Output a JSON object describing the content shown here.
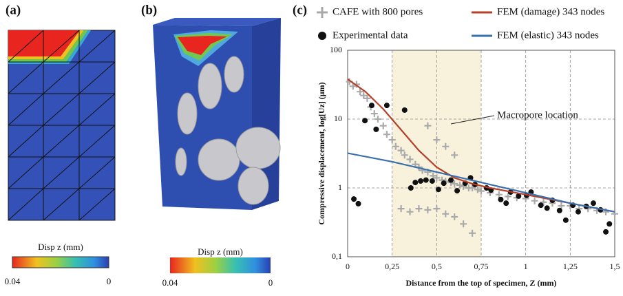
{
  "panels": [
    {
      "label": "(a)",
      "colorbar_title": "Disp z (mm)",
      "colorbar_ticks": [
        0.04,
        0
      ]
    },
    {
      "label": "(b)",
      "colorbar_title": "Disp z (mm)",
      "colorbar_ticks": [
        0.04,
        0
      ]
    }
  ],
  "chart_data": {
    "type": "scatter",
    "panel_label": "(c)",
    "xlabel": "Distance from the top of specimen, Z (mm)",
    "ylabel": "Compressive displacement, log[Uz] (μm)",
    "xlim": [
      0,
      1.5
    ],
    "ylim": [
      0.1,
      100
    ],
    "yscale": "log",
    "grid": true,
    "xticks": [
      0,
      {
        "value": 0.25,
        "label": "0,25"
      },
      {
        "value": 0.5,
        "label": "0,5"
      },
      {
        "value": 0.75,
        "label": "0,75"
      },
      1,
      {
        "value": 1.25,
        "label": "1,25"
      },
      {
        "value": 1.5,
        "label": "1,5"
      }
    ],
    "yticks": [
      {
        "value": 0.1,
        "label": "0,1"
      },
      1,
      10,
      100
    ],
    "highlight": {
      "x": [
        0.25,
        0.75
      ],
      "color": "#f8f1dc",
      "label": "Macropore location"
    },
    "series": [
      {
        "name": "CAFE with 800 pores",
        "color": "#a9a9a9",
        "marker": "plus",
        "x": [
          0.01,
          0.03,
          0.05,
          0.07,
          0.09,
          0.11,
          0.13,
          0.15,
          0.17,
          0.2,
          0.22,
          0.25,
          0.27,
          0.3,
          0.32,
          0.35,
          0.38,
          0.4,
          0.42,
          0.45,
          0.48,
          0.5,
          0.53,
          0.55,
          0.58,
          0.6,
          0.63,
          0.65,
          0.68,
          0.7,
          0.73,
          0.75,
          0.8,
          0.85,
          0.9,
          0.95,
          1.0,
          1.05,
          1.1,
          1.15,
          1.2,
          1.25,
          1.3,
          1.35,
          1.4,
          1.45,
          1.5,
          0.3,
          0.35,
          0.4,
          0.45,
          0.5,
          0.55,
          0.6,
          0.65,
          0.7,
          0.45,
          0.5,
          0.55,
          0.6
        ],
        "values": [
          35,
          30,
          32,
          25,
          22,
          20,
          15,
          12,
          10,
          8,
          6,
          5,
          4,
          3.5,
          3,
          2.6,
          2.2,
          2,
          1.8,
          1.7,
          1.5,
          1.4,
          1.3,
          1.25,
          1.2,
          1.15,
          1.1,
          1.05,
          1.0,
          1.0,
          0.95,
          0.9,
          0.85,
          0.8,
          0.75,
          0.72,
          0.7,
          0.65,
          0.62,
          0.6,
          0.55,
          0.55,
          0.5,
          0.5,
          0.47,
          0.45,
          0.42,
          0.5,
          0.45,
          0.5,
          0.48,
          0.5,
          0.42,
          0.38,
          0.3,
          0.22,
          8,
          5,
          4,
          3
        ]
      },
      {
        "name": "Experimental data",
        "color": "#111111",
        "marker": "circle",
        "x": [
          0.035,
          0.06,
          0.097,
          0.135,
          0.16,
          0.22,
          0.32,
          0.355,
          0.38,
          0.41,
          0.44,
          0.475,
          0.51,
          0.54,
          0.58,
          0.615,
          0.66,
          0.69,
          0.715,
          0.78,
          0.805,
          0.86,
          0.89,
          0.915,
          0.96,
          1.005,
          1.03,
          1.085,
          1.12,
          1.15,
          1.19,
          1.225,
          1.265,
          1.295,
          1.34,
          1.38,
          1.42,
          1.45,
          1.47
        ],
        "values": [
          0.69,
          0.59,
          9.5,
          15.8,
          7.1,
          15.8,
          13.5,
          1.0,
          1.2,
          1.26,
          1.3,
          1.26,
          0.95,
          1.17,
          1.3,
          0.91,
          1.17,
          1.4,
          1.12,
          1.0,
          0.93,
          0.68,
          0.6,
          0.87,
          0.76,
          0.78,
          0.87,
          0.56,
          0.51,
          0.66,
          0.47,
          0.34,
          0.56,
          0.45,
          0.54,
          0.6,
          0.48,
          0.23,
          0.3
        ]
      },
      {
        "name": "FEM (damage) 343 nodes",
        "color": "#b5402a",
        "marker": "line",
        "x": [
          0,
          0.1,
          0.2,
          0.3,
          0.4,
          0.5,
          0.6,
          0.7,
          0.8,
          1.0,
          1.25,
          1.5
        ],
        "values": [
          38,
          25,
          14,
          7,
          3.5,
          2,
          1.4,
          1.15,
          1.0,
          0.8,
          0.6,
          0.45
        ]
      },
      {
        "name": "FEM (elastic) 343 nodes",
        "color": "#3a6fae",
        "marker": "line",
        "x": [
          0,
          0.25,
          0.5,
          0.75,
          1.0,
          1.25,
          1.5
        ],
        "values": [
          3.2,
          2.4,
          1.7,
          1.2,
          0.85,
          0.6,
          0.45
        ]
      }
    ]
  }
}
